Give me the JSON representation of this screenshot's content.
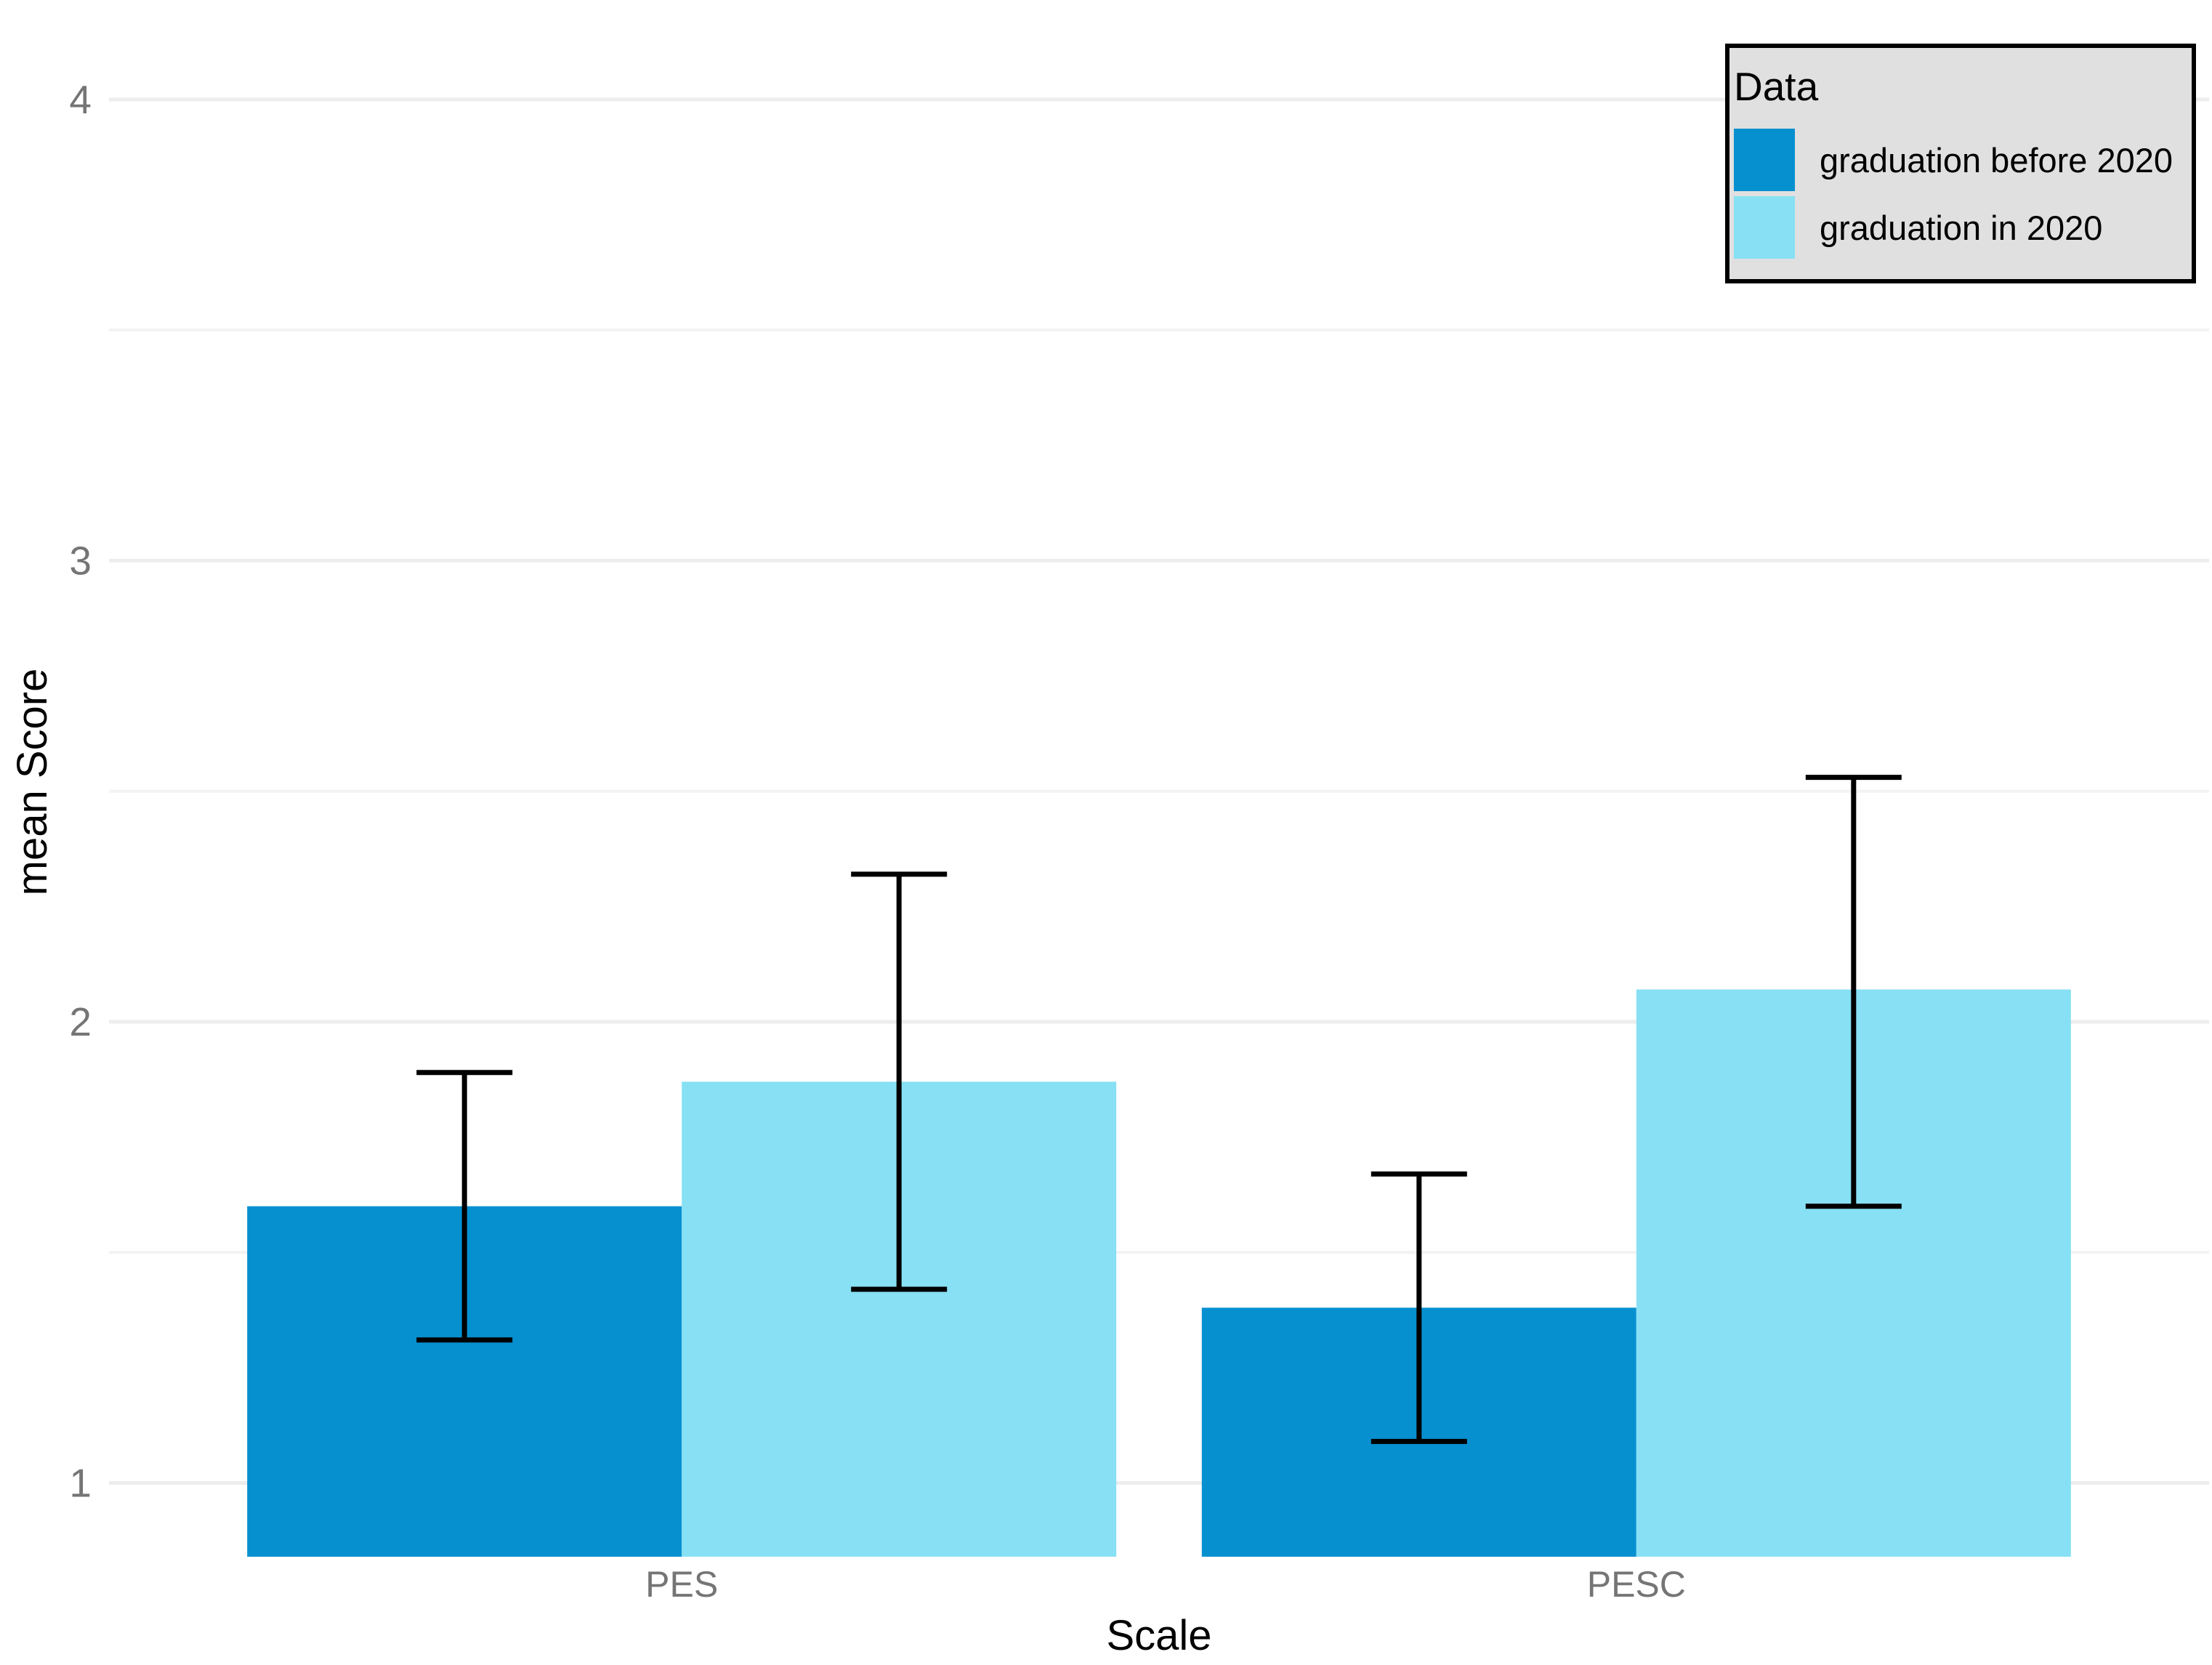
{
  "figure": {
    "background": "#FFFFFF"
  },
  "axes": {
    "x_title": "Scale",
    "y_title": "mean Score",
    "x_categories": [
      "PES",
      "PESC"
    ],
    "y_ticks": [
      1,
      2,
      3,
      4
    ],
    "y_minor_ticks": [
      1.5,
      2.5,
      3.5
    ],
    "tick_label_color": "#757575",
    "title_color": "#000000"
  },
  "legend": {
    "title": "Data",
    "background": "#E0E0E0",
    "border_color": "#000000",
    "entries": [
      {
        "label": "graduation before 2020",
        "color": "#0690D0"
      },
      {
        "label": "graduation in 2020",
        "color": "#87E0F4"
      }
    ]
  },
  "colors": {
    "grid_major": "#EDEDED",
    "grid_minor": "#F3F3F3",
    "error_bar": "#000000",
    "bar_dark_blue": "#0690D0",
    "bar_light_blue": "#87E0F4"
  },
  "chart_data": {
    "type": "bar",
    "title": "",
    "xlabel": "Scale",
    "ylabel": "mean Score",
    "categories": [
      "PES",
      "PESC"
    ],
    "series": [
      {
        "name": "graduation before 2020",
        "color": "#0690D0",
        "values": [
          1.6,
          1.38
        ],
        "error_low": [
          1.31,
          1.09
        ],
        "error_high": [
          1.89,
          1.67
        ]
      },
      {
        "name": "graduation in 2020",
        "color": "#87E0F4",
        "values": [
          1.87,
          2.07
        ],
        "error_low": [
          1.42,
          1.6
        ],
        "error_high": [
          2.32,
          2.53
        ]
      }
    ],
    "ylim": [
      0.84,
      4.2
    ],
    "y_major_ticks": [
      1,
      2,
      3,
      4
    ],
    "y_minor_ticks": [
      1.5,
      2.5,
      3.5
    ],
    "grid": true,
    "legend_title": "Data",
    "legend_position": "top-right-inside",
    "error_bars": true
  }
}
